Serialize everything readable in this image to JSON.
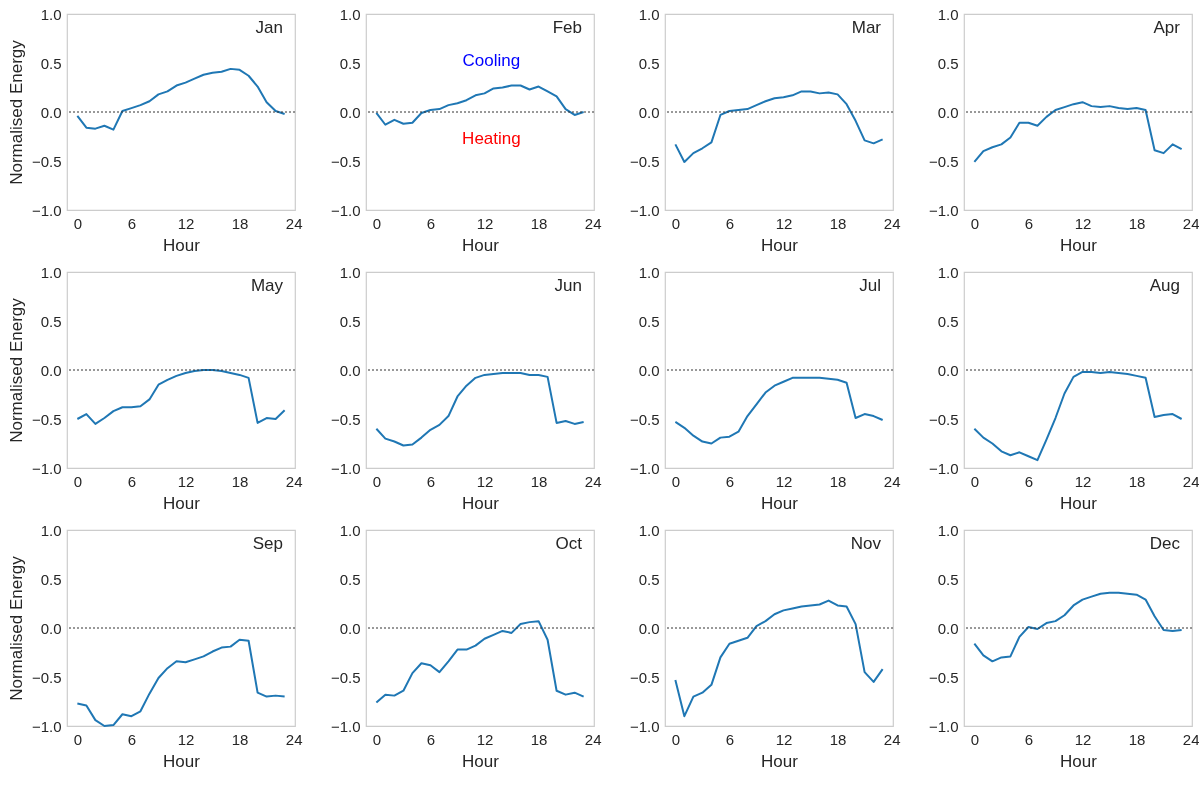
{
  "chart_data": [
    {
      "type": "line",
      "title": "Jan",
      "xlabel": "Hour",
      "ylabel": "Normalised Energy",
      "color": "#1f77b4",
      "x": [
        0,
        1,
        2,
        3,
        4,
        5,
        6,
        7,
        8,
        9,
        10,
        11,
        12,
        13,
        14,
        15,
        16,
        17,
        18,
        19,
        20,
        21,
        22,
        23
      ],
      "values": [
        -0.04,
        -0.16,
        -0.17,
        -0.14,
        -0.18,
        0.01,
        0.04,
        0.07,
        0.11,
        0.18,
        0.21,
        0.27,
        0.3,
        0.34,
        0.38,
        0.4,
        0.41,
        0.44,
        0.43,
        0.37,
        0.26,
        0.1,
        0.01,
        -0.02
      ],
      "xlim": [
        -1.15,
        24.15
      ],
      "ylim": [
        -1,
        1
      ],
      "xticks": [
        0,
        6,
        12,
        18,
        24
      ],
      "yticks": [
        {
          "value": -1,
          "label": "−1.0"
        },
        {
          "value": -0.5,
          "label": "−0.5"
        },
        {
          "value": 0,
          "label": "0.0"
        },
        {
          "value": 0.5,
          "label": "0.5"
        },
        {
          "value": 1,
          "label": "1.0"
        }
      ],
      "ref_lines": [
        {
          "axis": "y",
          "value": 0,
          "color": "#333333",
          "line_style": "dotted"
        }
      ]
    },
    {
      "type": "line",
      "title": "Feb",
      "xlabel": "Hour",
      "color": "#1f77b4",
      "x": [
        0,
        1,
        2,
        3,
        4,
        5,
        6,
        7,
        8,
        9,
        10,
        11,
        12,
        13,
        14,
        15,
        16,
        17,
        18,
        19,
        20,
        21,
        22,
        23
      ],
      "values": [
        -0.01,
        -0.13,
        -0.08,
        -0.12,
        -0.11,
        -0.01,
        0.02,
        0.03,
        0.07,
        0.09,
        0.12,
        0.17,
        0.19,
        0.24,
        0.25,
        0.27,
        0.27,
        0.23,
        0.26,
        0.21,
        0.16,
        0.03,
        -0.03,
        0.0
      ],
      "xlim": [
        -1.15,
        24.15
      ],
      "ylim": [
        -1,
        1
      ],
      "xticks": [
        0,
        6,
        12,
        18,
        24
      ],
      "yticks": [
        {
          "value": -1,
          "label": "−1.0"
        },
        {
          "value": -0.5,
          "label": "−0.5"
        },
        {
          "value": 0,
          "label": "0.0"
        },
        {
          "value": 0.5,
          "label": "0.5"
        },
        {
          "value": 1,
          "label": "1.0"
        }
      ],
      "ref_lines": [
        {
          "axis": "y",
          "value": 0,
          "color": "#333333",
          "line_style": "dotted"
        }
      ],
      "annotations": [
        "Cooling",
        "Heating"
      ]
    },
    {
      "type": "line",
      "title": "Mar",
      "xlabel": "Hour",
      "color": "#1f77b4",
      "x": [
        0,
        1,
        2,
        3,
        4,
        5,
        6,
        7,
        8,
        9,
        10,
        11,
        12,
        13,
        14,
        15,
        16,
        17,
        18,
        19,
        20,
        21,
        22,
        23
      ],
      "values": [
        -0.33,
        -0.51,
        -0.42,
        -0.37,
        -0.31,
        -0.03,
        0.01,
        0.02,
        0.03,
        0.07,
        0.11,
        0.14,
        0.15,
        0.17,
        0.21,
        0.21,
        0.19,
        0.2,
        0.18,
        0.08,
        -0.09,
        -0.29,
        -0.32,
        -0.28
      ],
      "xlim": [
        -1.15,
        24.15
      ],
      "ylim": [
        -1,
        1
      ],
      "xticks": [
        0,
        6,
        12,
        18,
        24
      ],
      "yticks": [
        {
          "value": -1,
          "label": "−1.0"
        },
        {
          "value": -0.5,
          "label": "−0.5"
        },
        {
          "value": 0,
          "label": "0.0"
        },
        {
          "value": 0.5,
          "label": "0.5"
        },
        {
          "value": 1,
          "label": "1.0"
        }
      ],
      "ref_lines": [
        {
          "axis": "y",
          "value": 0,
          "color": "#333333",
          "line_style": "dotted"
        }
      ]
    },
    {
      "type": "line",
      "title": "Apr",
      "xlabel": "Hour",
      "color": "#1f77b4",
      "x": [
        0,
        1,
        2,
        3,
        4,
        5,
        6,
        7,
        8,
        9,
        10,
        11,
        12,
        13,
        14,
        15,
        16,
        17,
        18,
        19,
        20,
        21,
        22,
        23
      ],
      "values": [
        -0.51,
        -0.4,
        -0.36,
        -0.33,
        -0.26,
        -0.11,
        -0.11,
        -0.14,
        -0.05,
        0.02,
        0.05,
        0.08,
        0.1,
        0.06,
        0.05,
        0.06,
        0.04,
        0.03,
        0.04,
        0.02,
        -0.39,
        -0.42,
        -0.33,
        -0.38
      ],
      "xlim": [
        -1.15,
        24.15
      ],
      "ylim": [
        -1,
        1
      ],
      "xticks": [
        0,
        6,
        12,
        18,
        24
      ],
      "yticks": [
        {
          "value": -1,
          "label": "−1.0"
        },
        {
          "value": -0.5,
          "label": "−0.5"
        },
        {
          "value": 0,
          "label": "0.0"
        },
        {
          "value": 0.5,
          "label": "0.5"
        },
        {
          "value": 1,
          "label": "1.0"
        }
      ],
      "ref_lines": [
        {
          "axis": "y",
          "value": 0,
          "color": "#333333",
          "line_style": "dotted"
        }
      ]
    },
    {
      "type": "line",
      "title": "May",
      "xlabel": "Hour",
      "ylabel": "Normalised Energy",
      "color": "#1f77b4",
      "x": [
        0,
        1,
        2,
        3,
        4,
        5,
        6,
        7,
        8,
        9,
        10,
        11,
        12,
        13,
        14,
        15,
        16,
        17,
        18,
        19,
        20,
        21,
        22,
        23
      ],
      "values": [
        -0.5,
        -0.45,
        -0.55,
        -0.49,
        -0.42,
        -0.38,
        -0.38,
        -0.37,
        -0.3,
        -0.15,
        -0.1,
        -0.06,
        -0.03,
        -0.01,
        0.0,
        0.0,
        -0.01,
        -0.03,
        -0.05,
        -0.08,
        -0.54,
        -0.49,
        -0.5,
        -0.41
      ],
      "xlim": [
        -1.15,
        24.15
      ],
      "ylim": [
        -1,
        1
      ],
      "xticks": [
        0,
        6,
        12,
        18,
        24
      ],
      "yticks": [
        {
          "value": -1,
          "label": "−1.0"
        },
        {
          "value": -0.5,
          "label": "−0.5"
        },
        {
          "value": 0,
          "label": "0.0"
        },
        {
          "value": 0.5,
          "label": "0.5"
        },
        {
          "value": 1,
          "label": "1.0"
        }
      ],
      "ref_lines": [
        {
          "axis": "y",
          "value": 0,
          "color": "#333333",
          "line_style": "dotted"
        }
      ]
    },
    {
      "type": "line",
      "title": "Jun",
      "xlabel": "Hour",
      "color": "#1f77b4",
      "x": [
        0,
        1,
        2,
        3,
        4,
        5,
        6,
        7,
        8,
        9,
        10,
        11,
        12,
        13,
        14,
        15,
        16,
        17,
        18,
        19,
        20,
        21,
        22,
        23
      ],
      "values": [
        -0.6,
        -0.7,
        -0.73,
        -0.77,
        -0.76,
        -0.69,
        -0.61,
        -0.56,
        -0.47,
        -0.27,
        -0.16,
        -0.08,
        -0.05,
        -0.04,
        -0.03,
        -0.03,
        -0.03,
        -0.05,
        -0.05,
        -0.07,
        -0.54,
        -0.52,
        -0.55,
        -0.53
      ],
      "xlim": [
        -1.15,
        24.15
      ],
      "ylim": [
        -1,
        1
      ],
      "xticks": [
        0,
        6,
        12,
        18,
        24
      ],
      "yticks": [
        {
          "value": -1,
          "label": "−1.0"
        },
        {
          "value": -0.5,
          "label": "−0.5"
        },
        {
          "value": 0,
          "label": "0.0"
        },
        {
          "value": 0.5,
          "label": "0.5"
        },
        {
          "value": 1,
          "label": "1.0"
        }
      ],
      "ref_lines": [
        {
          "axis": "y",
          "value": 0,
          "color": "#333333",
          "line_style": "dotted"
        }
      ]
    },
    {
      "type": "line",
      "title": "Jul",
      "xlabel": "Hour",
      "color": "#1f77b4",
      "x": [
        0,
        1,
        2,
        3,
        4,
        5,
        6,
        7,
        8,
        9,
        10,
        11,
        12,
        13,
        14,
        15,
        16,
        17,
        18,
        19,
        20,
        21,
        22,
        23
      ],
      "values": [
        -0.53,
        -0.59,
        -0.67,
        -0.73,
        -0.75,
        -0.69,
        -0.68,
        -0.63,
        -0.47,
        -0.35,
        -0.23,
        -0.16,
        -0.12,
        -0.08,
        -0.08,
        -0.08,
        -0.08,
        -0.09,
        -0.1,
        -0.13,
        -0.49,
        -0.45,
        -0.47,
        -0.51
      ],
      "xlim": [
        -1.15,
        24.15
      ],
      "ylim": [
        -1,
        1
      ],
      "xticks": [
        0,
        6,
        12,
        18,
        24
      ],
      "yticks": [
        {
          "value": -1,
          "label": "−1.0"
        },
        {
          "value": -0.5,
          "label": "−0.5"
        },
        {
          "value": 0,
          "label": "0.0"
        },
        {
          "value": 0.5,
          "label": "0.5"
        },
        {
          "value": 1,
          "label": "1.0"
        }
      ],
      "ref_lines": [
        {
          "axis": "y",
          "value": 0,
          "color": "#333333",
          "line_style": "dotted"
        }
      ]
    },
    {
      "type": "line",
      "title": "Aug",
      "xlabel": "Hour",
      "color": "#1f77b4",
      "x": [
        0,
        1,
        2,
        3,
        4,
        5,
        6,
        7,
        8,
        9,
        10,
        11,
        12,
        13,
        14,
        15,
        16,
        17,
        18,
        19,
        20,
        21,
        22,
        23
      ],
      "values": [
        -0.6,
        -0.69,
        -0.75,
        -0.83,
        -0.87,
        -0.84,
        -0.88,
        -0.92,
        -0.71,
        -0.49,
        -0.24,
        -0.07,
        -0.02,
        -0.02,
        -0.03,
        -0.02,
        -0.03,
        -0.04,
        -0.06,
        -0.08,
        -0.48,
        -0.46,
        -0.45,
        -0.5
      ],
      "xlim": [
        -1.15,
        24.15
      ],
      "ylim": [
        -1,
        1
      ],
      "xticks": [
        0,
        6,
        12,
        18,
        24
      ],
      "yticks": [
        {
          "value": -1,
          "label": "−1.0"
        },
        {
          "value": -0.5,
          "label": "−0.5"
        },
        {
          "value": 0,
          "label": "0.0"
        },
        {
          "value": 0.5,
          "label": "0.5"
        },
        {
          "value": 1,
          "label": "1.0"
        }
      ],
      "ref_lines": [
        {
          "axis": "y",
          "value": 0,
          "color": "#333333",
          "line_style": "dotted"
        }
      ]
    },
    {
      "type": "line",
      "title": "Sep",
      "xlabel": "Hour",
      "ylabel": "Normalised Energy",
      "color": "#1f77b4",
      "x": [
        0,
        1,
        2,
        3,
        4,
        5,
        6,
        7,
        8,
        9,
        10,
        11,
        12,
        13,
        14,
        15,
        16,
        17,
        18,
        19,
        20,
        21,
        22,
        23
      ],
      "values": [
        -0.77,
        -0.79,
        -0.94,
        -1.0,
        -0.99,
        -0.88,
        -0.9,
        -0.85,
        -0.67,
        -0.51,
        -0.41,
        -0.34,
        -0.35,
        -0.32,
        -0.29,
        -0.24,
        -0.2,
        -0.19,
        -0.12,
        -0.13,
        -0.66,
        -0.7,
        -0.69,
        -0.7
      ],
      "xlim": [
        -1.15,
        24.15
      ],
      "ylim": [
        -1,
        1
      ],
      "xticks": [
        0,
        6,
        12,
        18,
        24
      ],
      "yticks": [
        {
          "value": -1,
          "label": "−1.0"
        },
        {
          "value": -0.5,
          "label": "−0.5"
        },
        {
          "value": 0,
          "label": "0.0"
        },
        {
          "value": 0.5,
          "label": "0.5"
        },
        {
          "value": 1,
          "label": "1.0"
        }
      ],
      "ref_lines": [
        {
          "axis": "y",
          "value": 0,
          "color": "#333333",
          "line_style": "dotted"
        }
      ]
    },
    {
      "type": "line",
      "title": "Oct",
      "xlabel": "Hour",
      "color": "#1f77b4",
      "x": [
        0,
        1,
        2,
        3,
        4,
        5,
        6,
        7,
        8,
        9,
        10,
        11,
        12,
        13,
        14,
        15,
        16,
        17,
        18,
        19,
        20,
        21,
        22,
        23
      ],
      "values": [
        -0.76,
        -0.68,
        -0.69,
        -0.64,
        -0.46,
        -0.36,
        -0.38,
        -0.45,
        -0.34,
        -0.22,
        -0.22,
        -0.18,
        -0.11,
        -0.07,
        -0.03,
        -0.05,
        0.04,
        0.06,
        0.07,
        -0.12,
        -0.64,
        -0.68,
        -0.66,
        -0.7
      ],
      "xlim": [
        -1.15,
        24.15
      ],
      "ylim": [
        -1,
        1
      ],
      "xticks": [
        0,
        6,
        12,
        18,
        24
      ],
      "yticks": [
        {
          "value": -1,
          "label": "−1.0"
        },
        {
          "value": -0.5,
          "label": "−0.5"
        },
        {
          "value": 0,
          "label": "0.0"
        },
        {
          "value": 0.5,
          "label": "0.5"
        },
        {
          "value": 1,
          "label": "1.0"
        }
      ],
      "ref_lines": [
        {
          "axis": "y",
          "value": 0,
          "color": "#333333",
          "line_style": "dotted"
        }
      ]
    },
    {
      "type": "line",
      "title": "Nov",
      "xlabel": "Hour",
      "color": "#1f77b4",
      "x": [
        0,
        1,
        2,
        3,
        4,
        5,
        6,
        7,
        8,
        9,
        10,
        11,
        12,
        13,
        14,
        15,
        16,
        17,
        18,
        19,
        20,
        21,
        22,
        23
      ],
      "values": [
        -0.53,
        -0.9,
        -0.7,
        -0.66,
        -0.58,
        -0.3,
        -0.16,
        -0.13,
        -0.1,
        0.02,
        0.07,
        0.14,
        0.18,
        0.2,
        0.22,
        0.23,
        0.24,
        0.28,
        0.23,
        0.22,
        0.04,
        -0.45,
        -0.55,
        -0.42
      ],
      "xlim": [
        -1.15,
        24.15
      ],
      "ylim": [
        -1,
        1
      ],
      "xticks": [
        0,
        6,
        12,
        18,
        24
      ],
      "yticks": [
        {
          "value": -1,
          "label": "−1.0"
        },
        {
          "value": -0.5,
          "label": "−0.5"
        },
        {
          "value": 0,
          "label": "0.0"
        },
        {
          "value": 0.5,
          "label": "0.5"
        },
        {
          "value": 1,
          "label": "1.0"
        }
      ],
      "ref_lines": [
        {
          "axis": "y",
          "value": 0,
          "color": "#333333",
          "line_style": "dotted"
        }
      ]
    },
    {
      "type": "line",
      "title": "Dec",
      "xlabel": "Hour",
      "color": "#1f77b4",
      "x": [
        0,
        1,
        2,
        3,
        4,
        5,
        6,
        7,
        8,
        9,
        10,
        11,
        12,
        13,
        14,
        15,
        16,
        17,
        18,
        19,
        20,
        21,
        22,
        23
      ],
      "values": [
        -0.16,
        -0.28,
        -0.34,
        -0.3,
        -0.29,
        -0.09,
        0.01,
        -0.01,
        0.05,
        0.07,
        0.13,
        0.23,
        0.29,
        0.32,
        0.35,
        0.36,
        0.36,
        0.35,
        0.34,
        0.29,
        0.12,
        -0.02,
        -0.03,
        -0.02
      ],
      "xlim": [
        -1.15,
        24.15
      ],
      "ylim": [
        -1,
        1
      ],
      "xticks": [
        0,
        6,
        12,
        18,
        24
      ],
      "yticks": [
        {
          "value": -1,
          "label": "−1.0"
        },
        {
          "value": -0.5,
          "label": "−0.5"
        },
        {
          "value": 0,
          "label": "0.0"
        },
        {
          "value": 0.5,
          "label": "0.5"
        },
        {
          "value": 1,
          "label": "1.0"
        }
      ],
      "ref_lines": [
        {
          "axis": "y",
          "value": 0,
          "color": "#333333",
          "line_style": "dotted"
        }
      ]
    }
  ]
}
